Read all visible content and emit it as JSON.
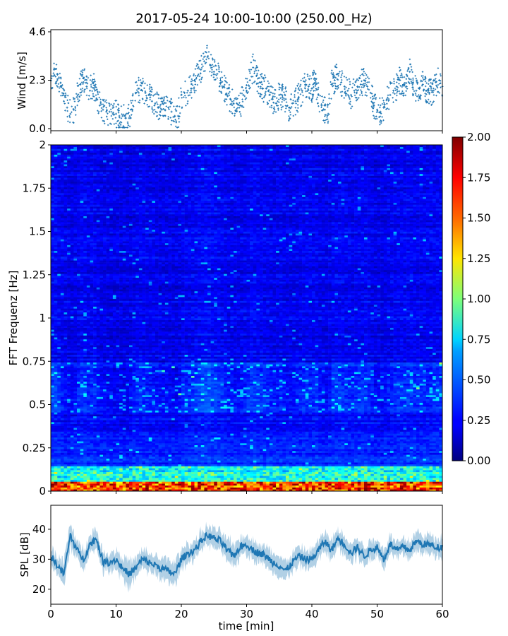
{
  "title": "2017-05-24 10:00-10:00 (250.00_Hz)",
  "chart_data": [
    {
      "panel": "wind",
      "type": "scatter",
      "ylabel": "Wind [m/s]",
      "xlim": [
        0,
        60
      ],
      "ylim": [
        0.0,
        4.6
      ],
      "yticks": [
        "0.0",
        "2.3",
        "4.6"
      ],
      "yticks_values": [
        0.0,
        2.3,
        4.6
      ],
      "color": "#1f77b4",
      "x": [
        0,
        0.5,
        1,
        1.5,
        2,
        2.5,
        3,
        3.5,
        4,
        4.5,
        5,
        5.5,
        6,
        6.5,
        7,
        7.5,
        8,
        8.5,
        9,
        9.5,
        10,
        10.5,
        11,
        11.5,
        12,
        12.5,
        13,
        13.5,
        14,
        14.5,
        15,
        15.5,
        16,
        16.5,
        17,
        17.5,
        18,
        18.5,
        19,
        19.5,
        20,
        20.5,
        21,
        21.5,
        22,
        22.5,
        23,
        23.5,
        24,
        24.5,
        25,
        25.5,
        26,
        26.5,
        27,
        27.5,
        28,
        28.5,
        29,
        29.5,
        30,
        30.5,
        31,
        31.5,
        32,
        32.5,
        33,
        33.5,
        34,
        34.5,
        35,
        35.5,
        36,
        36.5,
        37,
        37.5,
        38,
        38.5,
        39,
        39.5,
        40,
        40.5,
        41,
        41.5,
        42,
        42.5,
        43,
        43.5,
        44,
        44.5,
        45,
        45.5,
        46,
        46.5,
        47,
        47.5,
        48,
        48.5,
        49,
        49.5,
        50,
        50.5,
        51,
        51.5,
        52,
        52.5,
        53,
        53.5,
        54,
        54.5,
        55,
        55.5,
        56,
        56.5,
        57,
        57.5,
        58,
        58.5,
        59,
        59.5,
        60
      ],
      "y": [
        2.3,
        2.8,
        2.6,
        2.0,
        1.3,
        1.0,
        0.7,
        0.9,
        1.5,
        2.1,
        2.4,
        2.0,
        1.8,
        2.2,
        1.4,
        1.1,
        0.9,
        0.8,
        0.8,
        0.7,
        0.7,
        0.6,
        0.6,
        0.5,
        0.5,
        0.9,
        1.7,
        1.9,
        1.8,
        1.7,
        1.6,
        1.3,
        1.2,
        1.0,
        0.9,
        0.9,
        1.0,
        0.8,
        0.6,
        0.6,
        1.6,
        1.7,
        1.8,
        1.9,
        2.3,
        2.5,
        2.8,
        3.2,
        3.4,
        3.0,
        2.7,
        2.6,
        2.3,
        2.0,
        1.6,
        1.4,
        1.2,
        1.2,
        1.1,
        1.6,
        1.8,
        2.3,
        2.9,
        2.5,
        2.2,
        1.9,
        1.9,
        1.6,
        1.4,
        1.2,
        1.6,
        1.5,
        1.4,
        1.0,
        1.2,
        1.3,
        1.5,
        1.8,
        2.1,
        2.0,
        1.9,
        2.3,
        1.6,
        1.1,
        0.9,
        0.7,
        2.1,
        2.3,
        2.6,
        2.2,
        2.0,
        1.8,
        1.6,
        1.8,
        2.0,
        2.1,
        2.3,
        2.0,
        1.7,
        1.1,
        0.9,
        0.8,
        1.0,
        1.4,
        1.6,
        1.8,
        2.0,
        2.3,
        2.1,
        2.0,
        2.7,
        2.2,
        1.8,
        1.9,
        2.1,
        1.8,
        1.7,
        1.8,
        2.2,
        2.3,
        2.0
      ]
    },
    {
      "panel": "spectrogram",
      "type": "heatmap",
      "ylabel": "FFT Frequenz [Hz]",
      "xlim": [
        0,
        60
      ],
      "ylim": [
        0,
        2
      ],
      "yticks": [
        "0",
        "0.25",
        "0.5",
        "0.75",
        "1",
        "1.25",
        "1.5",
        "1.75",
        "2"
      ],
      "yticks_values": [
        0,
        0.25,
        0.5,
        0.75,
        1,
        1.25,
        1.5,
        1.75,
        2
      ],
      "colormap": "jet",
      "clim": [
        0.0,
        2.0
      ],
      "colorbar_ticks": [
        "0.00",
        "0.25",
        "0.50",
        "0.75",
        "1.00",
        "1.25",
        "1.50",
        "1.75",
        "2.00"
      ],
      "colorbar_values": [
        0.0,
        0.25,
        0.5,
        0.75,
        1.0,
        1.25,
        1.5,
        1.75,
        2.0
      ]
    },
    {
      "panel": "spl",
      "type": "area",
      "ylabel": "SPL [dB]",
      "xlabel": "time [min]",
      "xlim": [
        0,
        60
      ],
      "ylim": [
        15,
        48
      ],
      "xticks": [
        "0",
        "10",
        "20",
        "30",
        "40",
        "50",
        "60"
      ],
      "xticks_values": [
        0,
        10,
        20,
        30,
        40,
        50,
        60
      ],
      "yticks": [
        "20",
        "30",
        "40"
      ],
      "yticks_values": [
        20,
        30,
        40
      ],
      "color": "#1f77b4",
      "x": [
        0,
        1,
        2,
        3,
        4,
        5,
        6,
        7,
        8,
        9,
        10,
        11,
        12,
        13,
        14,
        15,
        16,
        17,
        18,
        19,
        20,
        21,
        22,
        23,
        24,
        25,
        26,
        27,
        28,
        29,
        30,
        31,
        32,
        33,
        34,
        35,
        36,
        37,
        38,
        39,
        40,
        41,
        42,
        43,
        44,
        45,
        46,
        47,
        48,
        49,
        50,
        51,
        52,
        53,
        54,
        55,
        56,
        57,
        58,
        59,
        60
      ],
      "y": [
        31,
        28,
        25,
        38,
        33,
        30,
        35,
        37,
        29,
        29,
        30,
        27,
        25,
        27,
        30,
        29,
        28,
        27,
        26,
        25,
        30,
        32,
        33,
        36,
        38,
        37,
        36,
        33,
        31,
        34,
        35,
        33,
        32,
        31,
        29,
        28,
        26,
        29,
        31,
        30,
        30,
        33,
        36,
        33,
        37,
        35,
        32,
        34,
        31,
        33,
        34,
        30,
        35,
        33,
        34,
        33,
        36,
        35,
        35,
        34,
        34
      ],
      "band": [
        3,
        3,
        4,
        4,
        3,
        3,
        3,
        3,
        3,
        3,
        3,
        4,
        4,
        3,
        3,
        3,
        3,
        3,
        4,
        4,
        3,
        3,
        3,
        3,
        3,
        3,
        3,
        4,
        4,
        3,
        3,
        3,
        3,
        3,
        3,
        3,
        3,
        3,
        3,
        3,
        3,
        3,
        3,
        3,
        3,
        3,
        3,
        3,
        3,
        3,
        3,
        3,
        3,
        3,
        3,
        3,
        3,
        3,
        3,
        3,
        3
      ]
    }
  ]
}
